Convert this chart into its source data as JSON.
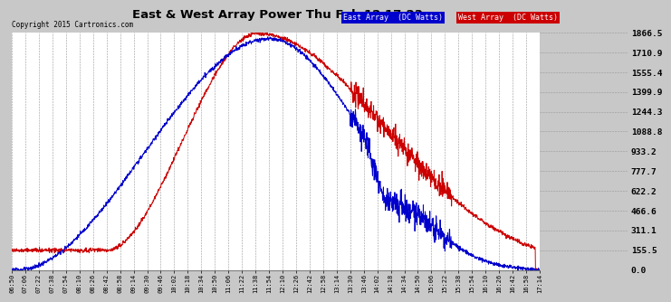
{
  "title": "East & West Array Power Thu Feb 12 17:23",
  "copyright": "Copyright 2015 Cartronics.com",
  "legend_east": "East Array  (DC Watts)",
  "legend_west": "West Array  (DC Watts)",
  "east_color": "#0000cc",
  "west_color": "#cc0000",
  "background_color": "#c8c8c8",
  "plot_bg_color": "#ffffff",
  "grid_color": "#999999",
  "yticks": [
    0.0,
    155.5,
    311.1,
    466.6,
    622.2,
    777.7,
    933.2,
    1088.8,
    1244.3,
    1399.9,
    1555.4,
    1710.9,
    1866.5
  ],
  "ymax": 1866.5,
  "ymin": 0.0,
  "xtick_labels": [
    "06:50",
    "07:06",
    "07:22",
    "07:38",
    "07:54",
    "08:10",
    "08:26",
    "08:42",
    "08:58",
    "09:14",
    "09:30",
    "09:46",
    "10:02",
    "10:18",
    "10:34",
    "10:50",
    "11:06",
    "11:22",
    "11:38",
    "11:54",
    "12:10",
    "12:26",
    "12:42",
    "12:58",
    "13:14",
    "13:30",
    "13:46",
    "14:02",
    "14:18",
    "14:34",
    "14:50",
    "15:06",
    "15:22",
    "15:38",
    "15:54",
    "16:10",
    "16:26",
    "16:42",
    "16:58",
    "17:14"
  ]
}
